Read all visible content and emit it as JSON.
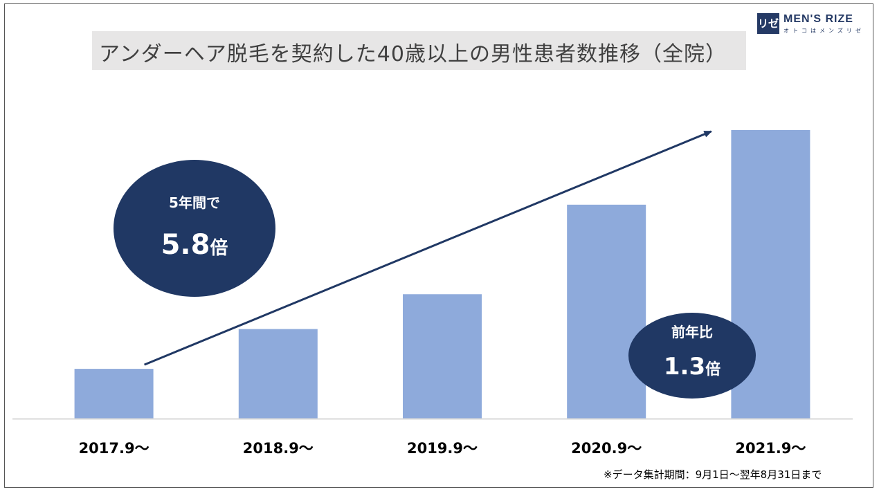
{
  "title": "アンダーヘア脱毛を契約した40歳以上の男性患者数推移（全院）",
  "logo": {
    "mark": "リゼ",
    "name": "MEN'S RIZE",
    "sub": "オトコはメンズリゼ"
  },
  "chart_data": {
    "type": "bar",
    "categories": [
      "2017.9～",
      "2018.9～",
      "2019.9～",
      "2020.9～",
      "2021.9～"
    ],
    "values": [
      1.0,
      1.8,
      2.5,
      4.3,
      5.8
    ],
    "ylim": [
      0,
      5.8
    ],
    "grid": false,
    "bar_color": "#8eaadb",
    "trend_arrow": {
      "from_category": 0,
      "to_category": 4,
      "color": "#203864"
    }
  },
  "callouts": {
    "total": {
      "label": "5年間で",
      "value": "5.8",
      "suffix": "倍"
    },
    "yoy": {
      "label": "前年比",
      "value": "1.3",
      "suffix": "倍"
    }
  },
  "footnote": "※データ集計期間：9月1日～翌年8月31日まで",
  "colors": {
    "bubble": "#203864",
    "title_bg": "#e7e6e6",
    "baseline": "#d9d9d9"
  }
}
